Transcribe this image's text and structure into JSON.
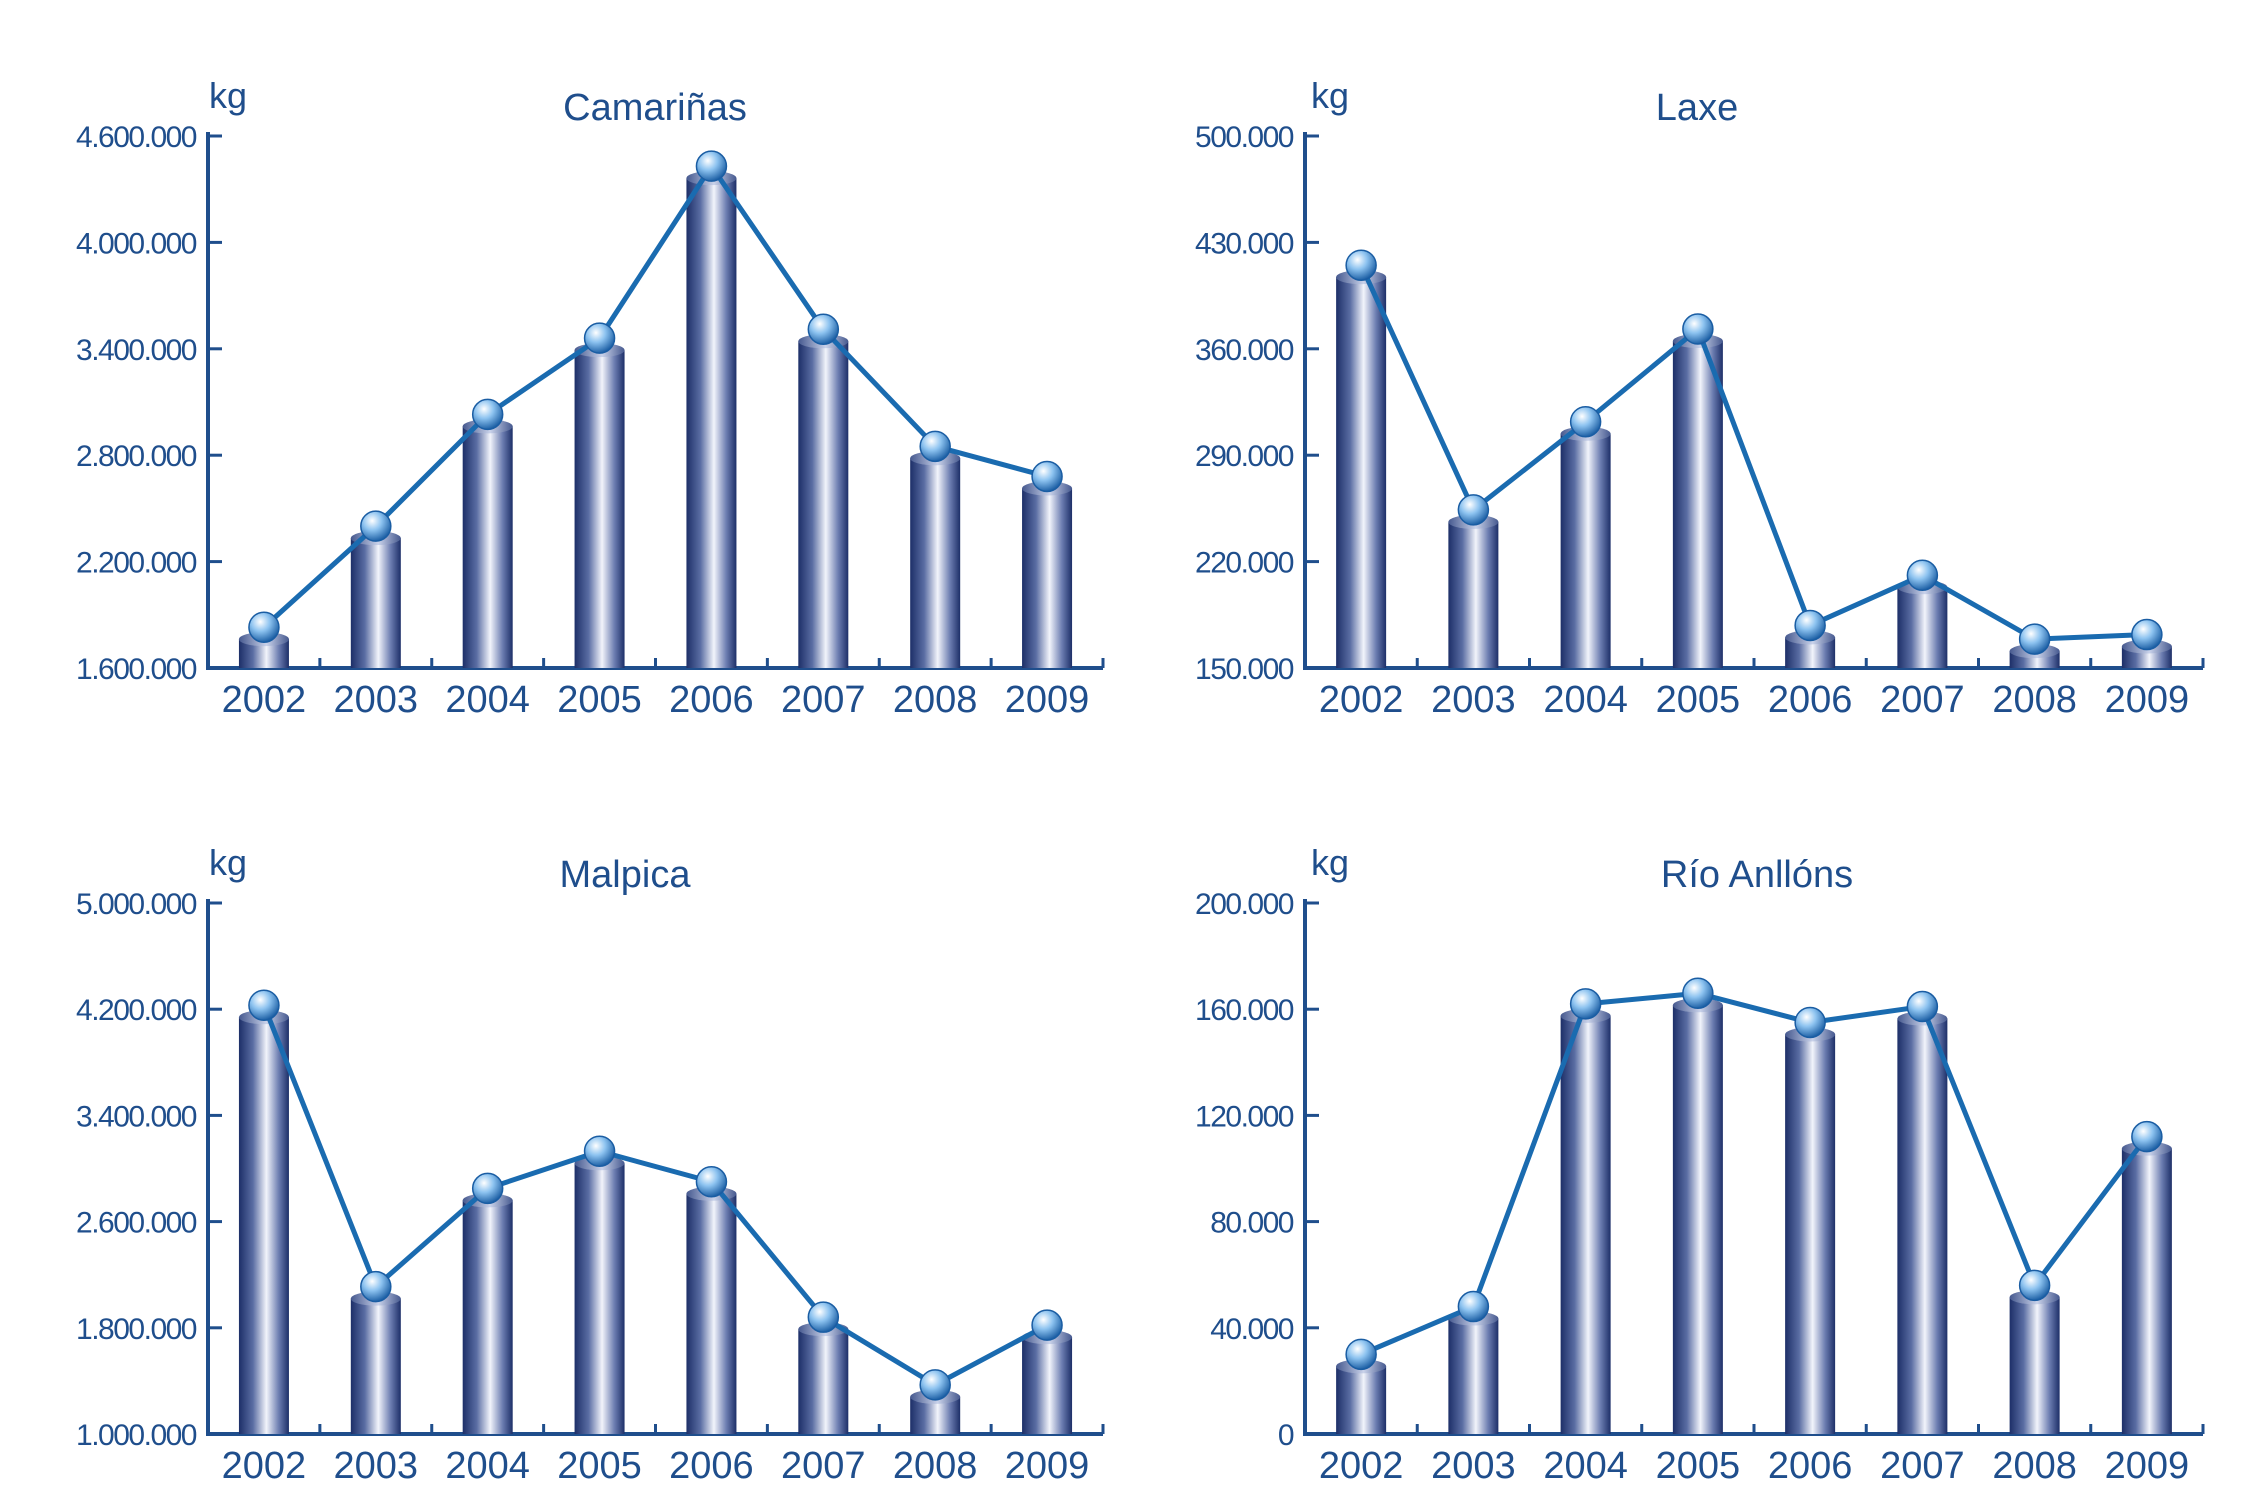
{
  "colors": {
    "axis": "#1f4e8c",
    "text": "#1f4e8c",
    "line": "#1a6bb0",
    "bar_dark": "#1d2f68",
    "bar_light": "#f2f4fb",
    "marker": "#8dc3f0"
  },
  "chart_data": [
    {
      "type": "bar",
      "title": "Camariñas",
      "ylabel": "kg",
      "xlabel": "",
      "categories": [
        "2002",
        "2003",
        "2004",
        "2005",
        "2006",
        "2007",
        "2008",
        "2009"
      ],
      "values": [
        1830000,
        2400000,
        3030000,
        3460000,
        4430000,
        3510000,
        2850000,
        2680000
      ],
      "ylim": [
        1600000,
        4600000
      ],
      "yticks": [
        1600000,
        2200000,
        2800000,
        3400000,
        4000000,
        4600000
      ],
      "ytick_labels": [
        "1.600.000",
        "2.200.000",
        "2.800.000",
        "3.400.000",
        "4.000.000",
        "4.600.000"
      ],
      "overlay": "line-with-markers",
      "grid": false
    },
    {
      "type": "bar",
      "title": "Laxe",
      "ylabel": "kg",
      "xlabel": "",
      "categories": [
        "2002",
        "2003",
        "2004",
        "2005",
        "2006",
        "2007",
        "2008",
        "2009"
      ],
      "values": [
        415000,
        254000,
        312000,
        373000,
        178000,
        211000,
        169000,
        172000
      ],
      "ylim": [
        150000,
        500000
      ],
      "yticks": [
        150000,
        220000,
        290000,
        360000,
        430000,
        500000
      ],
      "ytick_labels": [
        "150.000",
        "220.000",
        "290.000",
        "360.000",
        "430.000",
        "500.000"
      ],
      "overlay": "line-with-markers",
      "grid": false
    },
    {
      "type": "bar",
      "title": "Malpica",
      "ylabel": "kg",
      "xlabel": "",
      "categories": [
        "2002",
        "2003",
        "2004",
        "2005",
        "2006",
        "2007",
        "2008",
        "2009"
      ],
      "values": [
        4230000,
        2110000,
        2850000,
        3130000,
        2900000,
        1880000,
        1370000,
        1820000
      ],
      "ylim": [
        1000000,
        5000000
      ],
      "yticks": [
        1000000,
        1800000,
        2600000,
        3400000,
        4200000,
        5000000
      ],
      "ytick_labels": [
        "1.000.000",
        "1.800.000",
        "2.600.000",
        "3.400.000",
        "4.200.000",
        "5.000.000"
      ],
      "overlay": "line-with-markers",
      "grid": false
    },
    {
      "type": "bar",
      "title": "Río Anllóns",
      "ylabel": "kg",
      "xlabel": "",
      "categories": [
        "2002",
        "2003",
        "2004",
        "2005",
        "2006",
        "2007",
        "2008",
        "2009"
      ],
      "values": [
        30000,
        48000,
        162000,
        166000,
        155000,
        161000,
        56000,
        112000
      ],
      "ylim": [
        0,
        200000
      ],
      "yticks": [
        0,
        40000,
        80000,
        120000,
        160000,
        200000
      ],
      "ytick_labels": [
        "0",
        "40.000",
        "80.000",
        "120.000",
        "160.000",
        "200.000"
      ],
      "overlay": "line-with-markers",
      "grid": false
    }
  ]
}
